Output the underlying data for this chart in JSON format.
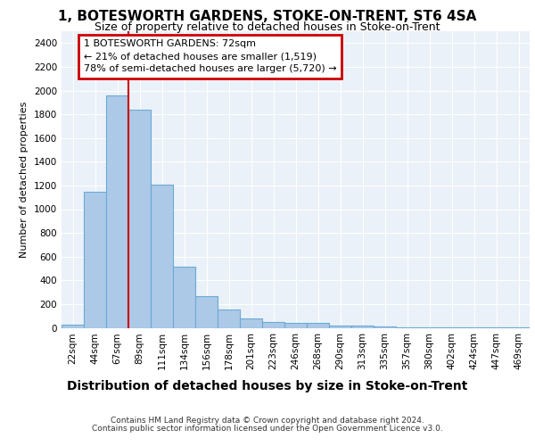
{
  "title1": "1, BOTESWORTH GARDENS, STOKE-ON-TRENT, ST6 4SA",
  "title2": "Size of property relative to detached houses in Stoke-on-Trent",
  "xlabel": "Distribution of detached houses by size in Stoke-on-Trent",
  "ylabel": "Number of detached properties",
  "categories": [
    "22sqm",
    "44sqm",
    "67sqm",
    "89sqm",
    "111sqm",
    "134sqm",
    "156sqm",
    "178sqm",
    "201sqm",
    "223sqm",
    "246sqm",
    "268sqm",
    "290sqm",
    "313sqm",
    "335sqm",
    "357sqm",
    "380sqm",
    "402sqm",
    "424sqm",
    "447sqm",
    "469sqm"
  ],
  "values": [
    30,
    1150,
    1960,
    1840,
    1210,
    515,
    265,
    155,
    80,
    50,
    45,
    40,
    22,
    20,
    12,
    5,
    5,
    5,
    5,
    5,
    5
  ],
  "bar_color": "#adc9e8",
  "bar_edge_color": "#6aaad4",
  "marker_line_color": "#cc0000",
  "marker_bar_index": 2,
  "annotation_text": "1 BOTESWORTH GARDENS: 72sqm\n← 21% of detached houses are smaller (1,519)\n78% of semi-detached houses are larger (5,720) →",
  "annotation_box_color": "#cc0000",
  "ylim": [
    0,
    2500
  ],
  "yticks": [
    0,
    200,
    400,
    600,
    800,
    1000,
    1200,
    1400,
    1600,
    1800,
    2000,
    2200,
    2400
  ],
  "footer1": "Contains HM Land Registry data © Crown copyright and database right 2024.",
  "footer2": "Contains public sector information licensed under the Open Government Licence v3.0.",
  "bg_color": "#eaf1f8",
  "grid_color": "#ffffff",
  "title1_fontsize": 11,
  "title2_fontsize": 9,
  "xlabel_fontsize": 10,
  "ylabel_fontsize": 8,
  "tick_fontsize": 7.5,
  "footer_fontsize": 6.5
}
